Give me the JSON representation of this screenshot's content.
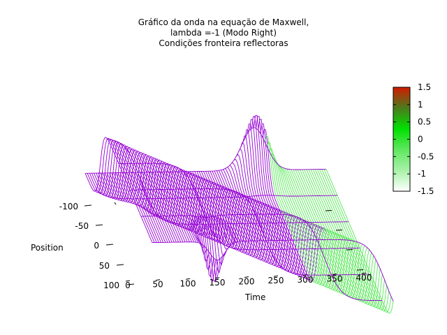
{
  "chart_data": {
    "type": "surface",
    "title_lines": [
      "Gráfico da onda na equação de Maxwell,",
      "lambda =-1 (Modo Right)",
      "Condições fronteira reflectoras"
    ],
    "xlabel": "Time",
    "ylabel": "Position",
    "x_ticks": [
      "0",
      "50",
      "100",
      "150",
      "200",
      "250",
      "300",
      "350",
      "400"
    ],
    "y_ticks": [
      "-100",
      "-50",
      "0",
      "50",
      "100"
    ],
    "colorbar": {
      "ticks": [
        "1.5",
        "1",
        "0.5",
        "0",
        "-0.5",
        "-1",
        "-1.5"
      ],
      "range": [
        -1.5,
        1.5
      ],
      "gradient": [
        "#ffffff",
        "#a8f2a8",
        "#5fe85f",
        "#00e000",
        "#4a7c1c",
        "#d21a00"
      ]
    },
    "xlim": [
      0,
      400
    ],
    "ylim": [
      -100,
      100
    ],
    "zlim": [
      -1.5,
      1.5
    ],
    "surface_color": "#9400d3",
    "underside_color": "#55e855",
    "peaks": [
      {
        "time": 0,
        "position": -110,
        "value": 1
      },
      {
        "time": 100,
        "position": 0,
        "value": -1.5
      },
      {
        "time": 200,
        "position": 0,
        "value": 0.5
      },
      {
        "time": 300,
        "position": -100,
        "value": 1.5
      }
    ]
  }
}
